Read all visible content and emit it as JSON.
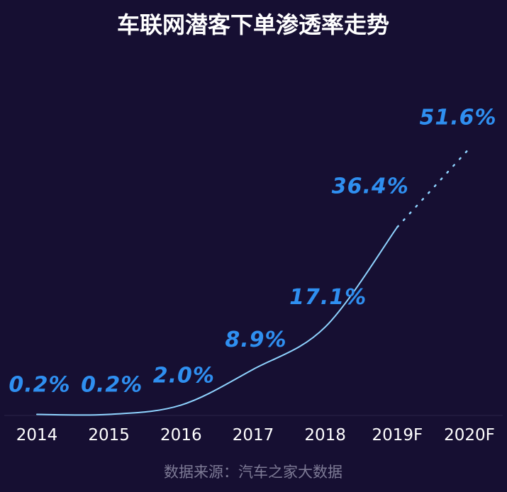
{
  "chart_data": {
    "type": "line",
    "title": "车联网潜客下单渗透率走势",
    "categories": [
      "2014",
      "2015",
      "2016",
      "2017",
      "2018",
      "2019F",
      "2020F"
    ],
    "series": [
      {
        "values": [
          0.2,
          0.2,
          2.0,
          8.9,
          17.1,
          36.4,
          51.6
        ],
        "labels": [
          "0.2%",
          "0.2%",
          "2.0%",
          "8.9%",
          "17.1%",
          "36.4%",
          "51.6%"
        ]
      }
    ],
    "forecast_from_index": 5,
    "ylim": [
      0,
      60
    ],
    "grid": false,
    "source": "数据来源：汽车之家大数据"
  },
  "colors": {
    "background": "#160f32",
    "line": "#8fd3ff",
    "label": "#2f8ff0",
    "axis": "#ffffff",
    "source": "#7d7a95"
  }
}
